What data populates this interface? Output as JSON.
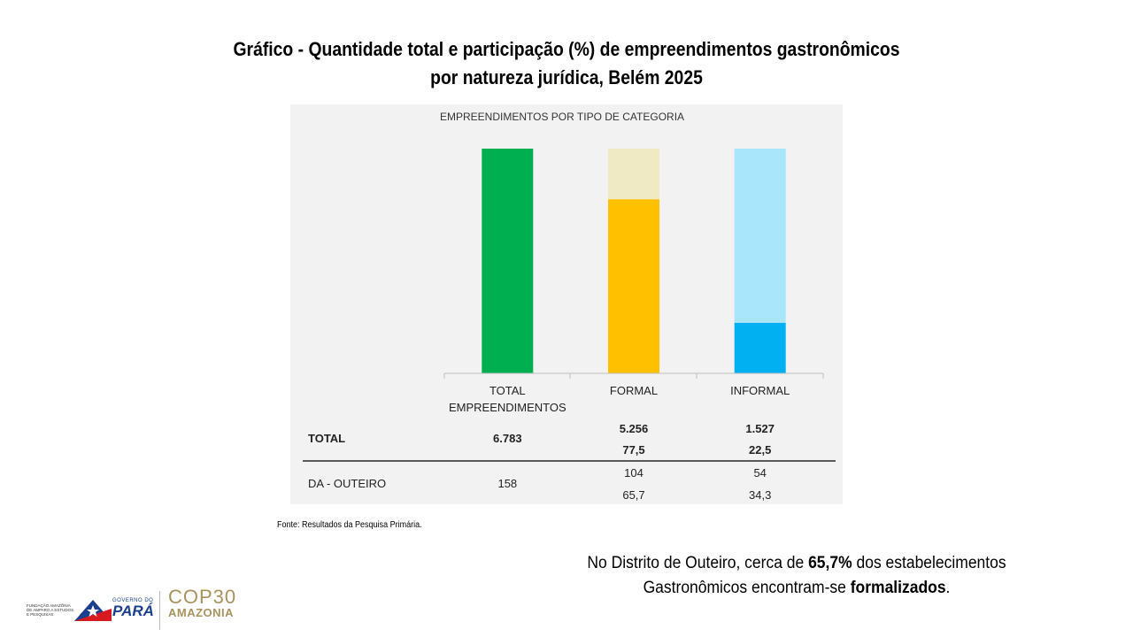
{
  "slide": {
    "title_line1": "Gráfico - Quantidade total e participação (%) de empreendimentos gastronômicos",
    "title_line2": "por natureza jurídica, Belém 2025",
    "source": "Fonte: Resultados da Pesquisa Primária.",
    "conclusion": {
      "p1": "No Distrito de Outeiro, cerca de ",
      "b1": "65,7%",
      "p2": " dos estabelecimentos",
      "p3": "Gastronômicos encontram-se ",
      "b2": "formalizados",
      "p4": "."
    }
  },
  "logos": {
    "fapespa": "FUNDAÇÃO AMAZÔNIA DE AMPARO A ESTUDOS E PESQUISAS",
    "governo": "GOVERNO DO",
    "para": "PARÁ",
    "cop": "COP30",
    "amazonia": "AMAZONIA"
  },
  "chart_data": {
    "type": "bar",
    "title": "EMPREENDIMENTOS POR TIPO DE CATEGORIA",
    "categories": [
      "TOTAL EMPREENDIMENTOS",
      "FORMAL",
      "INFORMAL"
    ],
    "unit": "%",
    "stacked_percent": true,
    "bars": [
      {
        "category": "TOTAL EMPREENDIMENTOS",
        "segments": [
          {
            "value": 100,
            "color": "#00b050"
          }
        ]
      },
      {
        "category": "FORMAL",
        "segments": [
          {
            "value": 77.5,
            "color": "#ffc000"
          },
          {
            "value": 22.5,
            "color": "#efe9c4"
          }
        ]
      },
      {
        "category": "INFORMAL",
        "segments": [
          {
            "value": 22.5,
            "color": "#00b0f0"
          },
          {
            "value": 77.5,
            "color": "#a9e5fb"
          }
        ]
      }
    ],
    "table": {
      "rows": [
        {
          "label": "TOTAL",
          "bold": true,
          "total": "6.783",
          "formal": [
            "5.256",
            "77,5"
          ],
          "informal": [
            "1.527",
            "22,5"
          ]
        },
        {
          "label": "DA - OUTEIRO",
          "bold": false,
          "total": "158",
          "formal": [
            "104",
            "65,7"
          ],
          "informal": [
            "54",
            "34,3"
          ]
        }
      ]
    },
    "grid": false
  }
}
